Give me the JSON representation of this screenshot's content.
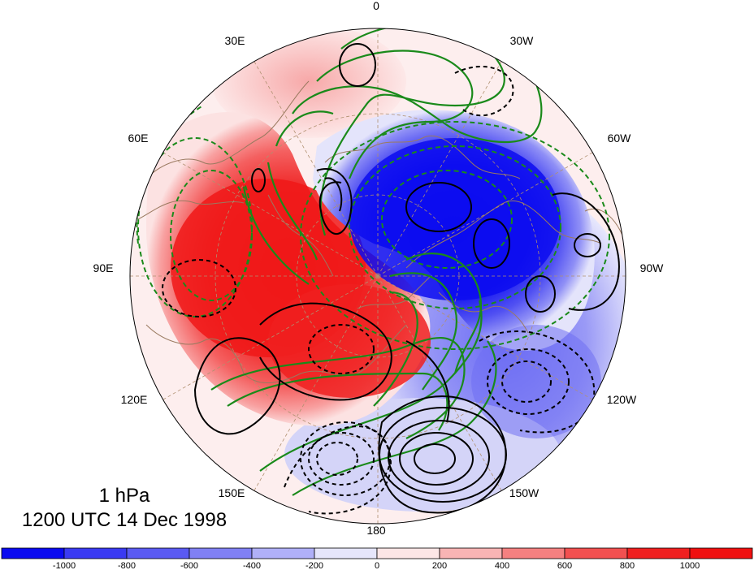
{
  "map": {
    "level": "1 hPa",
    "datetime": "1200 UTC 14 Dec 1998",
    "projection": "polar stereographic, north pole centered",
    "longitude_labels": [
      "0",
      "30W",
      "60W",
      "90W",
      "120W",
      "150W",
      "180",
      "150E",
      "120E",
      "90E",
      "60E",
      "30E"
    ]
  },
  "colorbar": {
    "tick_labels": [
      "-1000",
      "-800",
      "-600",
      "-400",
      "-200",
      "0",
      "200",
      "400",
      "600",
      "800",
      "1000"
    ],
    "colors": [
      "#0a0af0",
      "#3a3af2",
      "#5a5af2",
      "#8080f4",
      "#b0b0f8",
      "#e6e6fb",
      "#fce6e6",
      "#f8b4b4",
      "#f58080",
      "#f25050",
      "#f02020",
      "#f01010"
    ]
  },
  "colors": {
    "positive_shade": "#f02020",
    "negative_shade": "#1010f0",
    "contour_black": "#000000",
    "contour_green": "#1a8a1a",
    "coastline": "#9a7a60"
  }
}
